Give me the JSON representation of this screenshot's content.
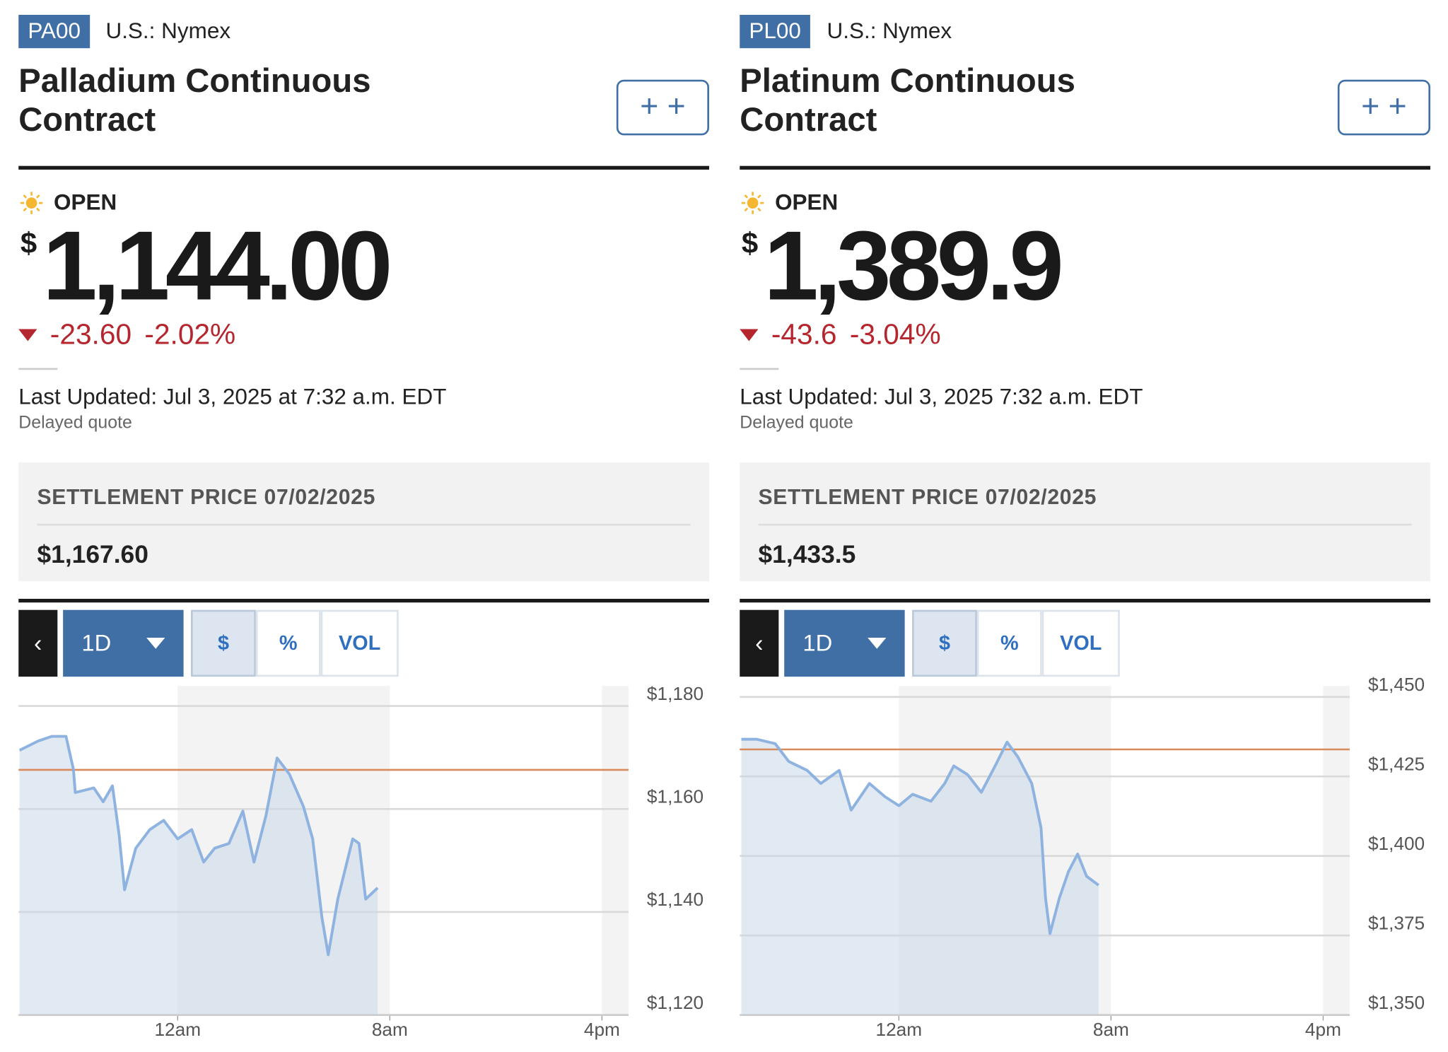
{
  "panels": [
    {
      "ticker": "PA00",
      "exchange": "U.S.: Nymex",
      "title": "Palladium Continuous Contract",
      "status": "OPEN",
      "currency": "$",
      "price": "1,144.00",
      "change": "-23.60",
      "change_percent": "-2.02%",
      "last_updated": "Last Updated: Jul 3, 2025 at 7:32 a.m. EDT",
      "delayed": "Delayed quote",
      "settlement_label": "SETTLEMENT PRICE 07/02/2025",
      "settlement_price": "$1,167.60",
      "controls": {
        "range": "1D",
        "units": [
          "$",
          "%",
          "VOL"
        ]
      },
      "chart": {
        "type": "line",
        "color": "#8fb3e0",
        "reference": 1167.6,
        "reference_color": "#d98a5a",
        "x": [
          -5.96,
          -5.26,
          -4.74,
          -4.21,
          -3.93,
          -3.86,
          -3.16,
          -2.81,
          -2.46,
          -2.21,
          -2.0,
          -1.58,
          -1.05,
          -0.53,
          0,
          0.53,
          0.98,
          1.4,
          1.93,
          2.46,
          2.88,
          3.33,
          3.75,
          4.21,
          4.74,
          5.09,
          5.44,
          5.68,
          6.04,
          6.6,
          6.84,
          7.09,
          7.54
        ],
        "values": [
          1171.4,
          1173.2,
          1174.1,
          1174.1,
          1167.7,
          1163.2,
          1164.1,
          1161.4,
          1164.5,
          1155.1,
          1144.3,
          1152.4,
          1156.0,
          1157.8,
          1154.2,
          1156.0,
          1149.7,
          1152.4,
          1153.3,
          1159.6,
          1149.7,
          1158.7,
          1169.9,
          1166.8,
          1160.5,
          1154.2,
          1138.9,
          1131.7,
          1142.5,
          1154.2,
          1153.3,
          1142.5,
          1144.7
        ],
        "xlim": [
          -6,
          17
        ],
        "xticks": [
          {
            "value": 0,
            "label": "12am"
          },
          {
            "value": 8,
            "label": "8am"
          },
          {
            "value": 16,
            "label": "4pm"
          }
        ],
        "ylim": [
          1120,
          1183
        ],
        "yticks": [
          {
            "value": 1120,
            "label": "$1,120"
          },
          {
            "value": 1140,
            "label": "$1,140"
          },
          {
            "value": 1160,
            "label": "$1,160"
          },
          {
            "value": 1180,
            "label": "$1,180"
          }
        ]
      }
    },
    {
      "ticker": "PL00",
      "exchange": "U.S.: Nymex",
      "title": "Platinum Continuous Contract",
      "status": "OPEN",
      "currency": "$",
      "price": "1,389.9",
      "change": "-43.6",
      "change_percent": "-3.04%",
      "last_updated": "Last Updated: Jul 3, 2025 7:32 a.m. EDT",
      "delayed": "Delayed quote",
      "settlement_label": "SETTLEMENT PRICE 07/02/2025",
      "settlement_price": "$1,433.5",
      "controls": {
        "range": "1D",
        "units": [
          "$",
          "%",
          "VOL"
        ]
      },
      "chart": {
        "type": "line",
        "color": "#8fb3e0",
        "reference": 1433.5,
        "reference_color": "#d98a5a",
        "x": [
          -5.94,
          -5.36,
          -4.66,
          -4.15,
          -3.46,
          -2.94,
          -2.25,
          -1.8,
          -1.11,
          -0.52,
          0,
          0.52,
          1.21,
          1.73,
          2.07,
          2.59,
          3.11,
          3.63,
          4.08,
          4.49,
          5.01,
          5.36,
          5.53,
          5.7,
          6.05,
          6.39,
          6.74,
          7.08,
          7.53
        ],
        "values": [
          1436.7,
          1436.7,
          1435.3,
          1429.7,
          1426.9,
          1422.8,
          1426.9,
          1414.4,
          1422.8,
          1418.6,
          1415.8,
          1419.4,
          1417.2,
          1422.8,
          1428.3,
          1425.6,
          1420.0,
          1428.3,
          1435.8,
          1431.1,
          1422.8,
          1408.9,
          1386.7,
          1375.6,
          1386.7,
          1395.0,
          1400.6,
          1393.6,
          1390.8
        ],
        "xlim": [
          -6,
          17
        ],
        "xticks": [
          {
            "value": 0,
            "label": "12am"
          },
          {
            "value": 8,
            "label": "8am"
          },
          {
            "value": 16,
            "label": "4pm"
          }
        ],
        "ylim": [
          1350,
          1452
        ],
        "yticks": [
          {
            "value": 1350,
            "label": "$1,350"
          },
          {
            "value": 1375,
            "label": "$1,375"
          },
          {
            "value": 1400,
            "label": "$1,400"
          },
          {
            "value": 1425,
            "label": "$1,425"
          },
          {
            "value": 1450,
            "label": "$1,450"
          }
        ]
      }
    }
  ]
}
